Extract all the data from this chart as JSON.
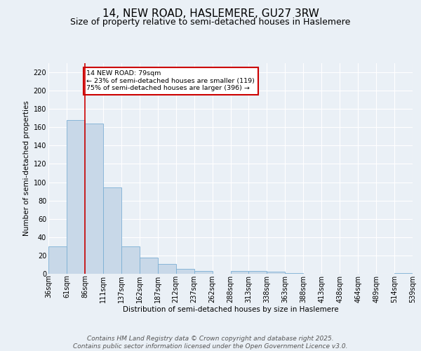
{
  "title": "14, NEW ROAD, HASLEMERE, GU27 3RW",
  "subtitle": "Size of property relative to semi-detached houses in Haslemere",
  "xlabel": "Distribution of semi-detached houses by size in Haslemere",
  "ylabel": "Number of semi-detached properties",
  "bar_values": [
    30,
    168,
    164,
    94,
    30,
    18,
    11,
    5,
    3,
    0,
    3,
    3,
    2,
    1,
    0,
    0,
    0,
    0,
    0,
    1
  ],
  "bar_labels": [
    "36sqm",
    "61sqm",
    "86sqm",
    "111sqm",
    "137sqm",
    "162sqm",
    "187sqm",
    "212sqm",
    "237sqm",
    "262sqm",
    "288sqm",
    "313sqm",
    "338sqm",
    "363sqm",
    "388sqm",
    "413sqm",
    "438sqm",
    "464sqm",
    "489sqm",
    "514sqm",
    "539sqm"
  ],
  "bar_color": "#c8d8e8",
  "bar_edge_color": "#7bafd4",
  "property_line_x": 1.5,
  "annotation_text": "14 NEW ROAD: 79sqm\n← 23% of semi-detached houses are smaller (119)\n75% of semi-detached houses are larger (396) →",
  "annotation_box_color": "#ffffff",
  "annotation_box_edge": "#cc0000",
  "vline_color": "#cc0000",
  "ylim": [
    0,
    230
  ],
  "yticks": [
    0,
    20,
    40,
    60,
    80,
    100,
    120,
    140,
    160,
    180,
    200,
    220
  ],
  "footer": "Contains HM Land Registry data © Crown copyright and database right 2025.\nContains public sector information licensed under the Open Government Licence v3.0.",
  "bg_color": "#eaf0f6",
  "plot_bg_color": "#eaf0f6",
  "grid_color": "#ffffff",
  "title_fontsize": 11,
  "subtitle_fontsize": 9,
  "label_fontsize": 7.5,
  "tick_fontsize": 7,
  "footer_fontsize": 6.5
}
